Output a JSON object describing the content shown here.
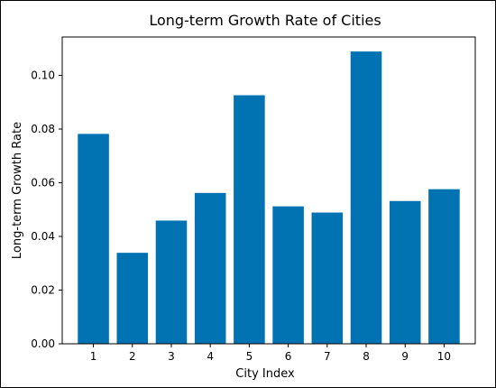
{
  "chart_data": {
    "type": "bar",
    "title": "Long-term Growth Rate of Cities",
    "xlabel": "City Index",
    "ylabel": "Long-term Growth Rate",
    "categories": [
      "1",
      "2",
      "3",
      "4",
      "5",
      "6",
      "7",
      "8",
      "9",
      "10"
    ],
    "values": [
      0.0782,
      0.0339,
      0.0459,
      0.0562,
      0.0926,
      0.0512,
      0.0489,
      0.1089,
      0.0532,
      0.0576
    ],
    "ylim": [
      0,
      0.1143
    ],
    "yticks": [
      "0.00",
      "0.02",
      "0.04",
      "0.06",
      "0.08",
      "0.10"
    ],
    "grid": false,
    "colors": {
      "bar": "#0173b2"
    }
  }
}
